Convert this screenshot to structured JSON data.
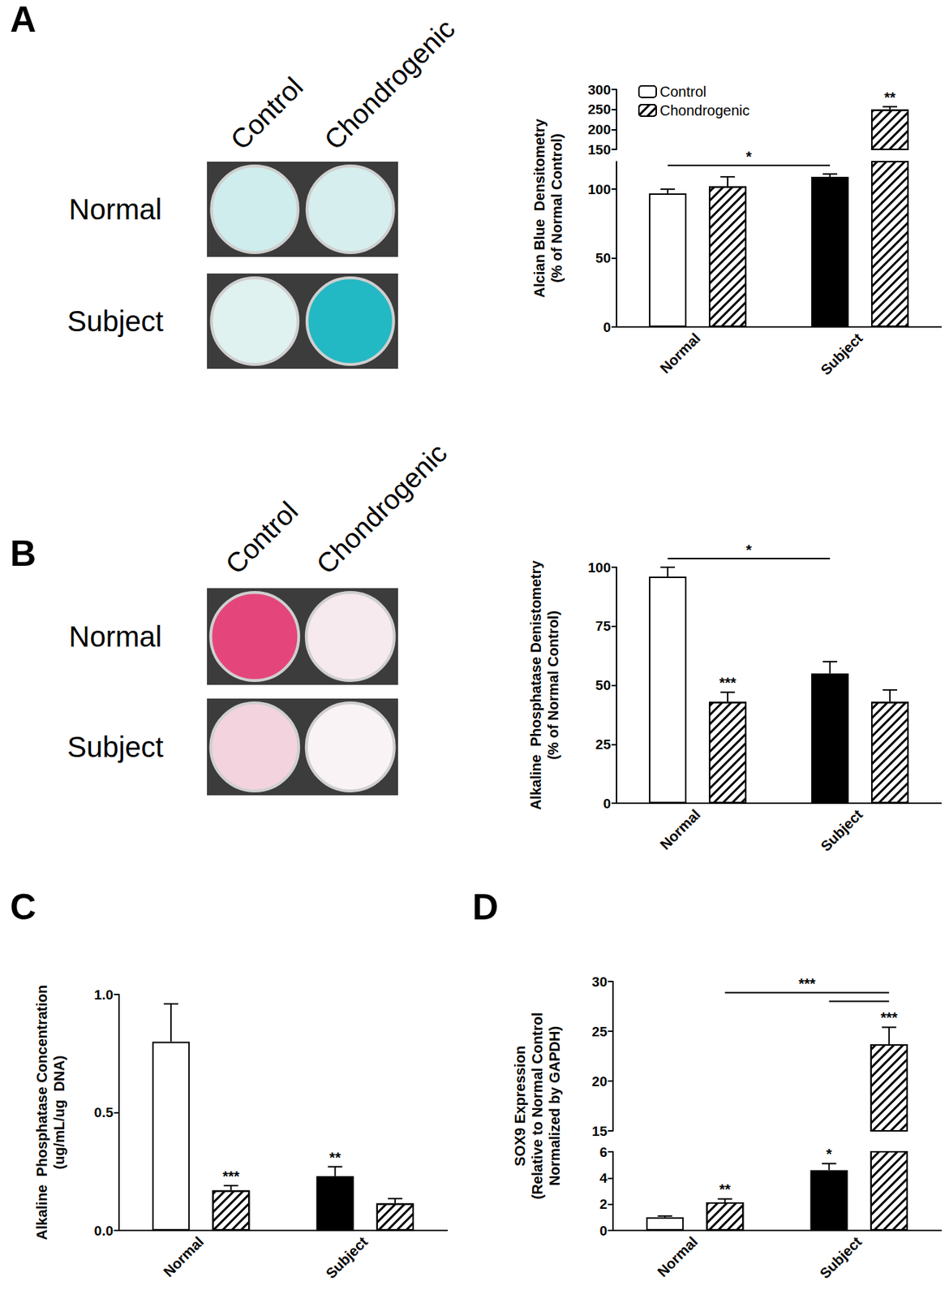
{
  "chart_data": [
    {
      "panel": "A",
      "type": "bar",
      "wells": {
        "columns": [
          "Control",
          "Chondrogenic"
        ],
        "rows": [
          "Normal",
          "Subject"
        ]
      },
      "categories": [
        "Normal",
        "Subject"
      ],
      "ylabel": "Alcian Blue  Densitometry\n(% of Normal Control)",
      "y_segments": [
        {
          "ylim": [
            0,
            120
          ],
          "yticks": [
            0,
            50,
            100
          ]
        },
        {
          "ylim": [
            150,
            300
          ],
          "yticks": [
            150,
            200,
            250,
            300
          ]
        }
      ],
      "legend": "upper left",
      "grid": false,
      "series": [
        {
          "name": "Control",
          "colors": [
            "#ffffff",
            "#000000"
          ],
          "values": [
            97,
            109
          ],
          "errors": [
            3,
            2
          ],
          "significance": [
            null,
            null
          ]
        },
        {
          "name": "Chondrogenic",
          "color": "#ffffff",
          "marker": "hatched",
          "values": [
            102,
            250
          ],
          "errors": [
            7,
            7
          ],
          "significance": [
            null,
            "**"
          ]
        }
      ],
      "brackets": [
        {
          "from": {
            "category": "Normal",
            "series": "Control"
          },
          "to": {
            "category": "Subject",
            "series": "Control"
          },
          "text": "*"
        }
      ]
    },
    {
      "panel": "B",
      "type": "bar",
      "wells": {
        "columns": [
          "Control",
          "Chondrogenic"
        ],
        "rows": [
          "Normal",
          "Subject"
        ]
      },
      "categories": [
        "Normal",
        "Subject"
      ],
      "ylabel": "Alkaline  Phosphatase Denistometry\n(% of Normal Control)",
      "ylim": [
        0,
        100
      ],
      "yticks": [
        0,
        25,
        50,
        75,
        100
      ],
      "grid": false,
      "series": [
        {
          "name": "Control",
          "colors": [
            "#ffffff",
            "#000000"
          ],
          "values": [
            96,
            55
          ],
          "errors": [
            4,
            5
          ],
          "significance": [
            null,
            null
          ]
        },
        {
          "name": "Chondrogenic",
          "color": "#ffffff",
          "marker": "hatched",
          "values": [
            43,
            43
          ],
          "errors": [
            4,
            5
          ],
          "significance": [
            "***",
            null
          ]
        }
      ],
      "brackets": [
        {
          "from": {
            "category": "Normal",
            "series": "Control"
          },
          "to": {
            "category": "Subject",
            "series": "Control"
          },
          "text": "*"
        }
      ]
    },
    {
      "panel": "C",
      "type": "bar",
      "categories": [
        "Normal",
        "Subject"
      ],
      "ylabel": "Alkaline  Phosphatase Concentration\n(ug/mL/ug  DNA)",
      "ylim": [
        0,
        1
      ],
      "yticks": [
        {
          "value": 0,
          "label": "0.0"
        },
        0.5,
        {
          "value": 1,
          "label": "1.0"
        }
      ],
      "grid": false,
      "series": [
        {
          "name": "Control",
          "colors": [
            "#ffffff",
            "#000000"
          ],
          "values": [
            0.8,
            0.23
          ],
          "errors": [
            0.16,
            0.04
          ],
          "significance": [
            null,
            "**"
          ]
        },
        {
          "name": "Chondrogenic",
          "color": "#ffffff",
          "marker": "hatched",
          "values": [
            0.17,
            0.115
          ],
          "errors": [
            0.02,
            0.02
          ],
          "significance": [
            "***",
            null
          ]
        }
      ]
    },
    {
      "panel": "D",
      "type": "bar",
      "categories": [
        "Normal",
        "Subject"
      ],
      "ylabel": "SOX9 Expression\n(Relative to Normal Control\nNormalized by GAPDH)",
      "y_segments": [
        {
          "ylim": [
            0,
            6
          ],
          "yticks": [
            0,
            2,
            4,
            6
          ]
        },
        {
          "ylim": [
            15,
            30
          ],
          "yticks": [
            15,
            20,
            25,
            30
          ]
        }
      ],
      "grid": false,
      "series": [
        {
          "name": "Control",
          "colors": [
            "#ffffff",
            "#000000"
          ],
          "values": [
            1.0,
            4.6
          ],
          "errors": [
            0.1,
            0.5
          ],
          "significance": [
            null,
            "*"
          ]
        },
        {
          "name": "Chondrogenic",
          "color": "#ffffff",
          "marker": "hatched",
          "values": [
            2.15,
            23.7
          ],
          "errors": [
            0.25,
            1.7
          ],
          "significance": [
            "**",
            "***"
          ]
        }
      ],
      "brackets": [
        {
          "from": {
            "category": "Normal",
            "series": "Chondrogenic"
          },
          "to": {
            "category": "Subject",
            "series": "Chondrogenic"
          },
          "text": "***"
        },
        {
          "from": {
            "category": "Subject",
            "series": "Control"
          },
          "to": {
            "category": "Subject",
            "series": "Chondrogenic"
          }
        }
      ]
    }
  ]
}
